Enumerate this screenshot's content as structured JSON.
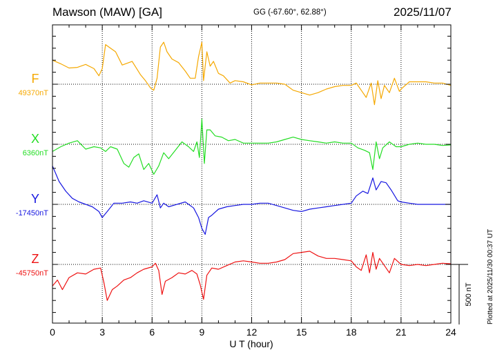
{
  "header": {
    "station": "Mawson (MAW)  [GA]",
    "coordinates": "GG (-67.60°,  62.88°)",
    "date": "2025/11/07"
  },
  "plotted_note": "Plotted at 2025/11/30 00:37 UT",
  "scale_bar_label": "500 nT",
  "chart_data": {
    "type": "line",
    "xlabel": "U T (hour)",
    "xlim": [
      0,
      24
    ],
    "xticks": [
      "0",
      "3",
      "6",
      "9",
      "12",
      "15",
      "18",
      "21",
      "24"
    ],
    "grid": true,
    "y_units": "nT",
    "scale_bar_nT": 500,
    "series": [
      {
        "name": "F",
        "baseline_label": "49370nT",
        "baseline_nT": 49370,
        "color": "#f5a800",
        "points": [
          [
            0,
            49570
          ],
          [
            0.5,
            49540
          ],
          [
            1,
            49505
          ],
          [
            1.5,
            49510
          ],
          [
            2,
            49535
          ],
          [
            2.5,
            49500
          ],
          [
            2.8,
            49440
          ],
          [
            3,
            49500
          ],
          [
            3.2,
            49700
          ],
          [
            3.4,
            49680
          ],
          [
            3.8,
            49640
          ],
          [
            4.2,
            49530
          ],
          [
            4.8,
            49560
          ],
          [
            5.3,
            49450
          ],
          [
            5.6,
            49400
          ],
          [
            5.9,
            49340
          ],
          [
            6.1,
            49320
          ],
          [
            6.3,
            49420
          ],
          [
            6.5,
            49680
          ],
          [
            6.7,
            49720
          ],
          [
            6.9,
            49640
          ],
          [
            7.2,
            49580
          ],
          [
            7.6,
            49550
          ],
          [
            8,
            49480
          ],
          [
            8.3,
            49420
          ],
          [
            8.6,
            49420
          ],
          [
            8.8,
            49600
          ],
          [
            9,
            49720
          ],
          [
            9.1,
            49400
          ],
          [
            9.3,
            49640
          ],
          [
            9.5,
            49520
          ],
          [
            9.7,
            49560
          ],
          [
            10,
            49460
          ],
          [
            10.3,
            49440
          ],
          [
            10.7,
            49380
          ],
          [
            11,
            49400
          ],
          [
            11.5,
            49390
          ],
          [
            12,
            49365
          ],
          [
            12.5,
            49380
          ],
          [
            13,
            49380
          ],
          [
            13.5,
            49380
          ],
          [
            14,
            49370
          ],
          [
            14.5,
            49320
          ],
          [
            15,
            49300
          ],
          [
            15.5,
            49280
          ],
          [
            16,
            49300
          ],
          [
            16.5,
            49330
          ],
          [
            17,
            49350
          ],
          [
            17.5,
            49360
          ],
          [
            18,
            49360
          ],
          [
            18.3,
            49380
          ],
          [
            18.6,
            49320
          ],
          [
            18.9,
            49260
          ],
          [
            19.2,
            49380
          ],
          [
            19.4,
            49200
          ],
          [
            19.6,
            49400
          ],
          [
            19.8,
            49250
          ],
          [
            20,
            49360
          ],
          [
            20.3,
            49300
          ],
          [
            20.6,
            49420
          ],
          [
            20.9,
            49310
          ],
          [
            21,
            49330
          ],
          [
            21.5,
            49390
          ],
          [
            22,
            49390
          ],
          [
            22.5,
            49390
          ],
          [
            23,
            49380
          ],
          [
            23.5,
            49380
          ],
          [
            24,
            49360
          ]
        ]
      },
      {
        "name": "X",
        "baseline_label": "6360nT",
        "baseline_nT": 6360,
        "color": "#22dd22",
        "points": [
          [
            0,
            6300
          ],
          [
            0.5,
            6340
          ],
          [
            1,
            6370
          ],
          [
            1.5,
            6390
          ],
          [
            2,
            6320
          ],
          [
            2.5,
            6340
          ],
          [
            2.9,
            6330
          ],
          [
            3.2,
            6300
          ],
          [
            3.5,
            6340
          ],
          [
            3.9,
            6320
          ],
          [
            4.3,
            6200
          ],
          [
            4.6,
            6170
          ],
          [
            4.9,
            6250
          ],
          [
            5.2,
            6280
          ],
          [
            5.5,
            6150
          ],
          [
            5.8,
            6200
          ],
          [
            6.1,
            6110
          ],
          [
            6.4,
            6180
          ],
          [
            6.7,
            6290
          ],
          [
            7,
            6240
          ],
          [
            7.4,
            6310
          ],
          [
            7.8,
            6380
          ],
          [
            8.2,
            6340
          ],
          [
            8.5,
            6300
          ],
          [
            8.7,
            6380
          ],
          [
            8.85,
            6250
          ],
          [
            9,
            6570
          ],
          [
            9.15,
            6200
          ],
          [
            9.3,
            6480
          ],
          [
            9.5,
            6480
          ],
          [
            9.8,
            6430
          ],
          [
            10.2,
            6420
          ],
          [
            10.6,
            6390
          ],
          [
            11,
            6400
          ],
          [
            11.5,
            6370
          ],
          [
            12,
            6370
          ],
          [
            12.5,
            6370
          ],
          [
            13,
            6370
          ],
          [
            13.5,
            6380
          ],
          [
            14,
            6400
          ],
          [
            14.5,
            6420
          ],
          [
            15,
            6400
          ],
          [
            15.5,
            6390
          ],
          [
            16,
            6380
          ],
          [
            16.5,
            6370
          ],
          [
            17,
            6380
          ],
          [
            17.5,
            6370
          ],
          [
            18,
            6370
          ],
          [
            18.4,
            6330
          ],
          [
            18.8,
            6310
          ],
          [
            19.1,
            6290
          ],
          [
            19.3,
            6150
          ],
          [
            19.5,
            6380
          ],
          [
            19.7,
            6240
          ],
          [
            19.9,
            6330
          ],
          [
            20.3,
            6380
          ],
          [
            20.7,
            6340
          ],
          [
            21,
            6340
          ],
          [
            21.5,
            6360
          ],
          [
            22,
            6370
          ],
          [
            22.5,
            6360
          ],
          [
            23,
            6360
          ],
          [
            23.5,
            6350
          ],
          [
            24,
            6355
          ]
        ]
      },
      {
        "name": "Y",
        "baseline_label": "-17450nT",
        "baseline_nT": -17450,
        "color": "#1515e0",
        "points": [
          [
            0,
            -17130
          ],
          [
            0.4,
            -17260
          ],
          [
            0.8,
            -17340
          ],
          [
            1.2,
            -17400
          ],
          [
            1.6,
            -17430
          ],
          [
            2,
            -17450
          ],
          [
            2.4,
            -17470
          ],
          [
            2.8,
            -17510
          ],
          [
            3,
            -17560
          ],
          [
            3.3,
            -17510
          ],
          [
            3.7,
            -17440
          ],
          [
            4.2,
            -17440
          ],
          [
            4.7,
            -17430
          ],
          [
            5.1,
            -17440
          ],
          [
            5.5,
            -17420
          ],
          [
            6,
            -17440
          ],
          [
            6.3,
            -17370
          ],
          [
            6.5,
            -17480
          ],
          [
            6.7,
            -17440
          ],
          [
            7,
            -17470
          ],
          [
            7.5,
            -17450
          ],
          [
            8,
            -17430
          ],
          [
            8.5,
            -17480
          ],
          [
            8.8,
            -17560
          ],
          [
            9,
            -17650
          ],
          [
            9.2,
            -17700
          ],
          [
            9.4,
            -17560
          ],
          [
            9.6,
            -17540
          ],
          [
            10,
            -17490
          ],
          [
            10.5,
            -17470
          ],
          [
            11,
            -17460
          ],
          [
            11.5,
            -17450
          ],
          [
            12,
            -17450
          ],
          [
            12.5,
            -17440
          ],
          [
            13,
            -17440
          ],
          [
            13.5,
            -17460
          ],
          [
            14,
            -17480
          ],
          [
            14.5,
            -17500
          ],
          [
            15,
            -17510
          ],
          [
            15.5,
            -17490
          ],
          [
            16,
            -17480
          ],
          [
            16.5,
            -17470
          ],
          [
            17,
            -17460
          ],
          [
            17.5,
            -17450
          ],
          [
            18,
            -17440
          ],
          [
            18.3,
            -17380
          ],
          [
            18.7,
            -17340
          ],
          [
            19,
            -17360
          ],
          [
            19.3,
            -17230
          ],
          [
            19.5,
            -17330
          ],
          [
            19.8,
            -17260
          ],
          [
            20.1,
            -17270
          ],
          [
            20.4,
            -17330
          ],
          [
            20.8,
            -17420
          ],
          [
            21,
            -17430
          ],
          [
            21.5,
            -17440
          ],
          [
            22,
            -17450
          ],
          [
            22.5,
            -17450
          ],
          [
            23,
            -17450
          ],
          [
            23.5,
            -17450
          ],
          [
            24,
            -17450
          ]
        ]
      },
      {
        "name": "Z",
        "baseline_label": "-45750nT",
        "baseline_nT": -45750,
        "color": "#ee1111",
        "points": [
          [
            0,
            -45930
          ],
          [
            0.3,
            -45880
          ],
          [
            0.6,
            -45960
          ],
          [
            1,
            -45860
          ],
          [
            1.5,
            -45820
          ],
          [
            2,
            -45830
          ],
          [
            2.5,
            -45790
          ],
          [
            2.9,
            -45780
          ],
          [
            3.1,
            -45900
          ],
          [
            3.3,
            -46050
          ],
          [
            3.6,
            -45960
          ],
          [
            3.9,
            -45930
          ],
          [
            4.3,
            -45880
          ],
          [
            4.7,
            -45860
          ],
          [
            5.1,
            -45820
          ],
          [
            5.5,
            -45790
          ],
          [
            6,
            -45770
          ],
          [
            6.2,
            -45740
          ],
          [
            6.4,
            -45800
          ],
          [
            6.6,
            -46000
          ],
          [
            6.8,
            -45890
          ],
          [
            7.2,
            -45860
          ],
          [
            7.6,
            -45820
          ],
          [
            8,
            -45830
          ],
          [
            8.4,
            -45800
          ],
          [
            8.7,
            -45830
          ],
          [
            8.9,
            -45920
          ],
          [
            9.1,
            -46040
          ],
          [
            9.3,
            -45840
          ],
          [
            9.6,
            -45780
          ],
          [
            10,
            -45790
          ],
          [
            10.5,
            -45760
          ],
          [
            11,
            -45730
          ],
          [
            11.5,
            -45720
          ],
          [
            12,
            -45730
          ],
          [
            12.5,
            -45740
          ],
          [
            13,
            -45740
          ],
          [
            13.5,
            -45730
          ],
          [
            14,
            -45710
          ],
          [
            14.5,
            -45660
          ],
          [
            15,
            -45650
          ],
          [
            15.5,
            -45640
          ],
          [
            16,
            -45680
          ],
          [
            16.5,
            -45700
          ],
          [
            17,
            -45700
          ],
          [
            17.5,
            -45710
          ],
          [
            18,
            -45720
          ],
          [
            18.3,
            -45770
          ],
          [
            18.6,
            -45800
          ],
          [
            18.9,
            -45670
          ],
          [
            19.1,
            -45820
          ],
          [
            19.3,
            -45650
          ],
          [
            19.5,
            -45790
          ],
          [
            19.7,
            -45700
          ],
          [
            20,
            -45760
          ],
          [
            20.3,
            -45820
          ],
          [
            20.6,
            -45700
          ],
          [
            21,
            -45750
          ],
          [
            21.5,
            -45760
          ],
          [
            22,
            -45750
          ],
          [
            22.5,
            -45760
          ],
          [
            23,
            -45750
          ],
          [
            23.5,
            -45740
          ],
          [
            24,
            -45745
          ]
        ]
      }
    ]
  }
}
